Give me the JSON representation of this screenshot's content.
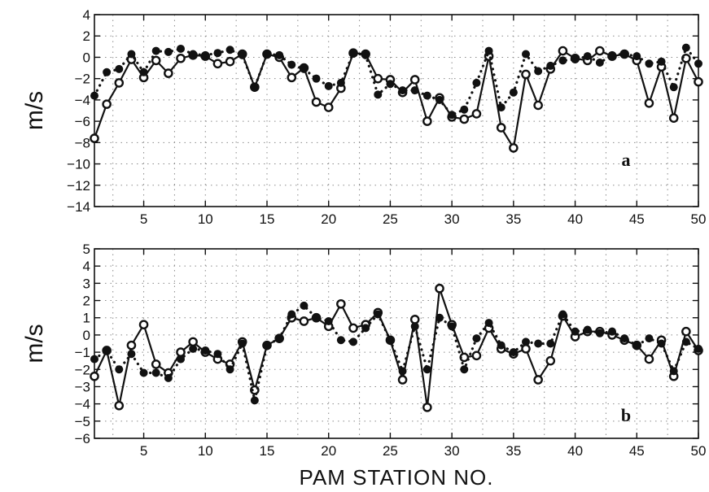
{
  "chart_data": [
    {
      "type": "line",
      "panel_label": "a",
      "ylabel": "m/s",
      "xlabel": "",
      "xlim": [
        1,
        50
      ],
      "ylim": [
        -14,
        4
      ],
      "xticks": [
        5,
        10,
        15,
        20,
        25,
        30,
        35,
        40,
        45,
        50
      ],
      "yticks": [
        -14,
        -12,
        -10,
        -8,
        -6,
        -4,
        -2,
        0,
        2,
        4
      ],
      "x": [
        1,
        2,
        3,
        4,
        5,
        6,
        7,
        8,
        9,
        10,
        11,
        12,
        13,
        14,
        15,
        16,
        17,
        18,
        19,
        20,
        21,
        22,
        23,
        24,
        25,
        26,
        27,
        28,
        29,
        30,
        31,
        32,
        33,
        34,
        35,
        36,
        37,
        38,
        39,
        40,
        41,
        42,
        43,
        44,
        45,
        46,
        47,
        48,
        49,
        50
      ],
      "series": [
        {
          "style": "solid-open-circles",
          "values": [
            -7.6,
            -4.4,
            -2.4,
            -0.2,
            -1.9,
            -0.3,
            -1.5,
            -0.1,
            0.2,
            0.1,
            -0.6,
            -0.4,
            0.3,
            -2.8,
            0.3,
            0,
            -1.9,
            -1,
            -4.2,
            -4.7,
            -2.9,
            0.4,
            0.3,
            -2,
            -2.1,
            -3.3,
            -2.1,
            -6,
            -3.8,
            -5.6,
            -5.8,
            -5.3,
            0.1,
            -6.6,
            -8.5,
            -1.6,
            -4.5,
            -1.1,
            0.6,
            -0.1,
            -0.3,
            0.6,
            0.1,
            0.3,
            -0.3,
            -4.3,
            -0.9,
            -5.7,
            -0.1,
            -2.3
          ]
        },
        {
          "style": "dotted-filled-circles",
          "values": [
            -3.6,
            -1.4,
            -1.1,
            0.3,
            -1.4,
            0.6,
            0.5,
            0.8,
            0.3,
            0.2,
            0.4,
            0.7,
            0.2,
            -2.8,
            0.3,
            0.2,
            -0.7,
            -1.1,
            -2,
            -2.7,
            -2.4,
            0.4,
            0.2,
            -3.5,
            -2.5,
            -3.1,
            -3.1,
            -3.6,
            -4,
            -5.4,
            -4.9,
            -2.4,
            0.6,
            -4.7,
            -3.3,
            0.3,
            -1.3,
            -0.8,
            -0.3,
            -0.2,
            0.1,
            -0.5,
            0.2,
            0.3,
            0.1,
            -0.6,
            -0.4,
            -2.8,
            0.9,
            -0.6
          ]
        }
      ]
    },
    {
      "type": "line",
      "panel_label": "b",
      "ylabel": "m/s",
      "xlabel": "PAM STATION NO.",
      "xlim": [
        1,
        50
      ],
      "ylim": [
        -6,
        5
      ],
      "xticks": [
        5,
        10,
        15,
        20,
        25,
        30,
        35,
        40,
        45,
        50
      ],
      "yticks": [
        -6,
        -5,
        -4,
        -3,
        -2,
        -1,
        0,
        1,
        2,
        3,
        4,
        5
      ],
      "x": [
        1,
        2,
        3,
        4,
        5,
        6,
        7,
        8,
        9,
        10,
        11,
        12,
        13,
        14,
        15,
        16,
        17,
        18,
        19,
        20,
        21,
        22,
        23,
        24,
        25,
        26,
        27,
        28,
        29,
        30,
        31,
        32,
        33,
        34,
        35,
        36,
        37,
        38,
        39,
        40,
        41,
        42,
        43,
        44,
        45,
        46,
        47,
        48,
        49,
        50
      ],
      "series": [
        {
          "style": "solid-open-circles",
          "values": [
            -2.4,
            -0.9,
            -4.1,
            -0.6,
            0.6,
            -1.7,
            -2.2,
            -1,
            -0.4,
            -1,
            -1.4,
            -1.7,
            -0.4,
            -3.2,
            -0.6,
            -0.2,
            1,
            0.8,
            1,
            0.5,
            1.8,
            0.4,
            0.6,
            1.3,
            -0.3,
            -2.6,
            0.9,
            -4.2,
            2.7,
            0.6,
            -1.3,
            -1.2,
            0.4,
            -0.8,
            -1.1,
            -0.8,
            -2.6,
            -1.5,
            1.1,
            -0.1,
            0.2,
            0.2,
            0,
            -0.3,
            -0.6,
            -1.4,
            -0.3,
            -2.4,
            0.2,
            -0.9
          ]
        },
        {
          "style": "dotted-filled-circles",
          "values": [
            -1.4,
            -0.9,
            -2,
            -1.1,
            -2.2,
            -2.2,
            -2.5,
            -1.4,
            -0.8,
            -0.9,
            -1.1,
            -2,
            -0.5,
            -3.8,
            -0.6,
            -0.2,
            1.2,
            1.7,
            1,
            0.8,
            -0.3,
            -0.4,
            0.4,
            1.2,
            -0.3,
            -2.1,
            0.5,
            -2,
            1,
            0.5,
            -2,
            -0.2,
            0.7,
            -0.6,
            -1,
            -0.4,
            -0.5,
            -0.5,
            1.2,
            0.2,
            0.3,
            0.1,
            0.2,
            -0.2,
            -0.6,
            -0.2,
            -0.5,
            -2.1,
            -0.4,
            -0.8
          ]
        }
      ]
    }
  ]
}
